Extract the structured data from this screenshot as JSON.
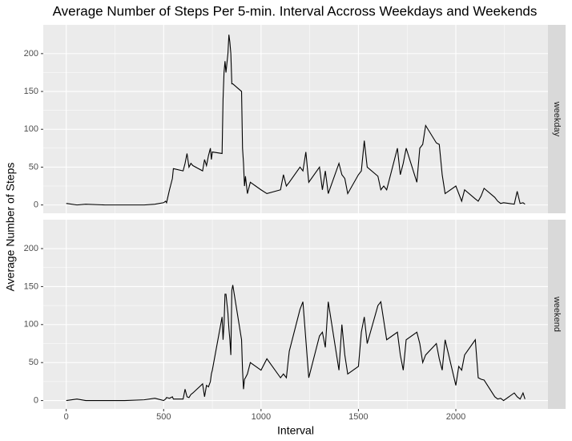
{
  "chart_data": {
    "type": "line",
    "title": "Average Number of Steps Per 5-min. Interval Accross Weekdays and Weekends",
    "x_label": "Interval",
    "y_label": "Average Number of Steps",
    "xlim": [
      -118,
      2473
    ],
    "xticks": [
      0,
      500,
      1000,
      1500,
      2000
    ],
    "ylim": [
      -11,
      238
    ],
    "yticks": [
      0,
      50,
      100,
      150,
      200
    ],
    "grid": true,
    "x": [
      0,
      55,
      100,
      200,
      300,
      400,
      455,
      500,
      510,
      515,
      530,
      545,
      550,
      600,
      610,
      620,
      630,
      640,
      650,
      700,
      710,
      720,
      730,
      740,
      745,
      750,
      800,
      805,
      810,
      815,
      820,
      830,
      835,
      840,
      845,
      850,
      855,
      900,
      905,
      910,
      915,
      920,
      930,
      945,
      1000,
      1030,
      1100,
      1115,
      1130,
      1145,
      1200,
      1215,
      1230,
      1245,
      1300,
      1315,
      1330,
      1345,
      1400,
      1415,
      1430,
      1445,
      1500,
      1515,
      1530,
      1545,
      1600,
      1615,
      1630,
      1645,
      1700,
      1715,
      1730,
      1745,
      1800,
      1815,
      1830,
      1845,
      1900,
      1915,
      1930,
      1945,
      2000,
      2015,
      2030,
      2045,
      2100,
      2115,
      2130,
      2145,
      2200,
      2215,
      2230,
      2245,
      2300,
      2315,
      2330,
      2345,
      2355
    ],
    "series": [
      {
        "name": "weekday",
        "color": "#000000",
        "values": [
          2,
          0,
          1,
          0,
          0,
          0,
          1,
          3,
          5,
          3,
          20,
          35,
          48,
          45,
          55,
          68,
          50,
          55,
          52,
          45,
          60,
          52,
          65,
          75,
          60,
          70,
          68,
          140,
          175,
          190,
          175,
          200,
          225,
          215,
          200,
          160,
          160,
          150,
          75,
          55,
          25,
          38,
          15,
          30,
          20,
          15,
          20,
          40,
          25,
          30,
          50,
          45,
          70,
          30,
          50,
          20,
          45,
          15,
          55,
          40,
          35,
          15,
          40,
          45,
          85,
          50,
          38,
          20,
          25,
          20,
          75,
          40,
          55,
          75,
          30,
          75,
          80,
          105,
          82,
          80,
          40,
          15,
          25,
          15,
          5,
          20,
          8,
          5,
          12,
          22,
          10,
          5,
          2,
          3,
          1,
          18,
          2,
          3,
          1
        ]
      },
      {
        "name": "weekend",
        "color": "#000000",
        "values": [
          0,
          2,
          0,
          0,
          0,
          1,
          3,
          0,
          2,
          4,
          3,
          5,
          2,
          2,
          15,
          5,
          4,
          8,
          10,
          22,
          5,
          20,
          18,
          25,
          35,
          40,
          110,
          80,
          100,
          140,
          140,
          115,
          95,
          80,
          60,
          145,
          152,
          80,
          40,
          15,
          28,
          30,
          35,
          50,
          40,
          55,
          30,
          35,
          30,
          65,
          120,
          130,
          80,
          30,
          85,
          90,
          70,
          130,
          40,
          100,
          60,
          35,
          45,
          90,
          110,
          75,
          125,
          130,
          105,
          80,
          90,
          60,
          40,
          80,
          90,
          75,
          50,
          60,
          75,
          55,
          40,
          80,
          20,
          45,
          40,
          60,
          80,
          30,
          28,
          27,
          5,
          2,
          3,
          0,
          10,
          5,
          2,
          10,
          2
        ]
      }
    ]
  }
}
